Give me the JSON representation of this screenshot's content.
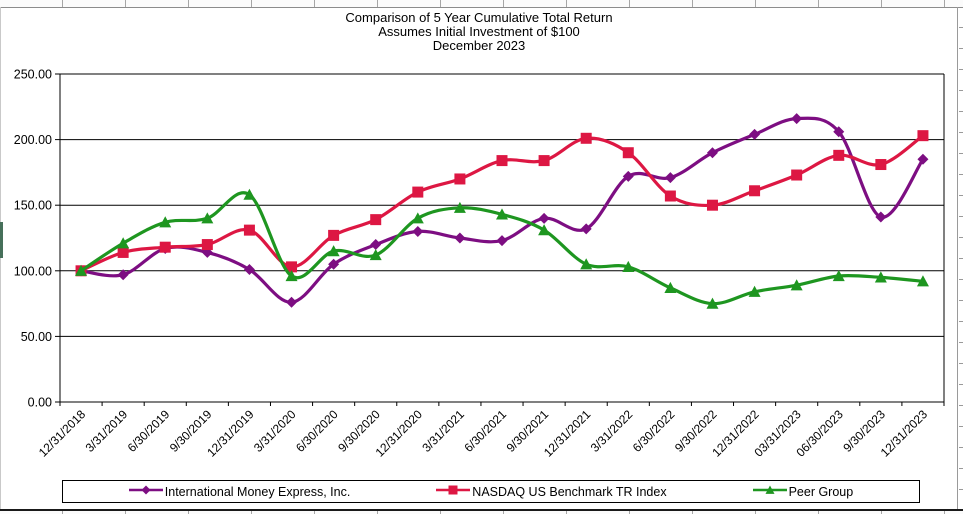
{
  "chart_data": {
    "type": "line",
    "smoothed": true,
    "title": "Comparison of 5 Year Cumulative Total Return",
    "subtitle1": "Assumes Initial Investment of $100",
    "subtitle2": "December 2023",
    "categories": [
      "12/31/2018",
      "3/31/2019",
      "6/30/2019",
      "9/30/2019",
      "12/31/2019",
      "3/31/2020",
      "6/30/2020",
      "9/30/2020",
      "12/31/2020",
      "3/31/2021",
      "6/30/2021",
      "9/30/2021",
      "12/31/2021",
      "3/31/2022",
      "6/30/2022",
      "9/30/2022",
      "12/31/2022",
      "03/31/2023",
      "06/30/2023",
      "9/30/2023",
      "12/31/2023"
    ],
    "series": [
      {
        "name": "International Money Express, Inc.",
        "color": "#7D0E82",
        "marker": "diamond",
        "values": [
          100,
          97,
          117,
          114,
          101,
          76,
          105,
          120,
          130,
          125,
          123,
          140,
          132,
          172,
          171,
          190,
          204,
          216,
          206,
          141,
          185
        ]
      },
      {
        "name": "NASDAQ US Benchmark TR Index",
        "color": "#DD1743",
        "marker": "square",
        "values": [
          100,
          114,
          118,
          120,
          131,
          103,
          127,
          139,
          160,
          170,
          184,
          184,
          201,
          190,
          157,
          150,
          161,
          173,
          188,
          181,
          203
        ]
      },
      {
        "name": "Peer Group",
        "color": "#1E9620",
        "marker": "triangle",
        "values": [
          100,
          121,
          137,
          140,
          158,
          96,
          115,
          112,
          140,
          148,
          143,
          131,
          105,
          103,
          87,
          75,
          84,
          89,
          96,
          95,
          92
        ]
      }
    ],
    "ylim": [
      0,
      250
    ],
    "ytick_labels": [
      "0.00",
      "50.00",
      "100.00",
      "150.00",
      "200.00",
      "250.00"
    ],
    "ytick_values": [
      0,
      50,
      100,
      150,
      200,
      250
    ],
    "grid": true,
    "legend_position": "bottom",
    "axis_color": "#000000",
    "gridline_color": "#000000"
  }
}
